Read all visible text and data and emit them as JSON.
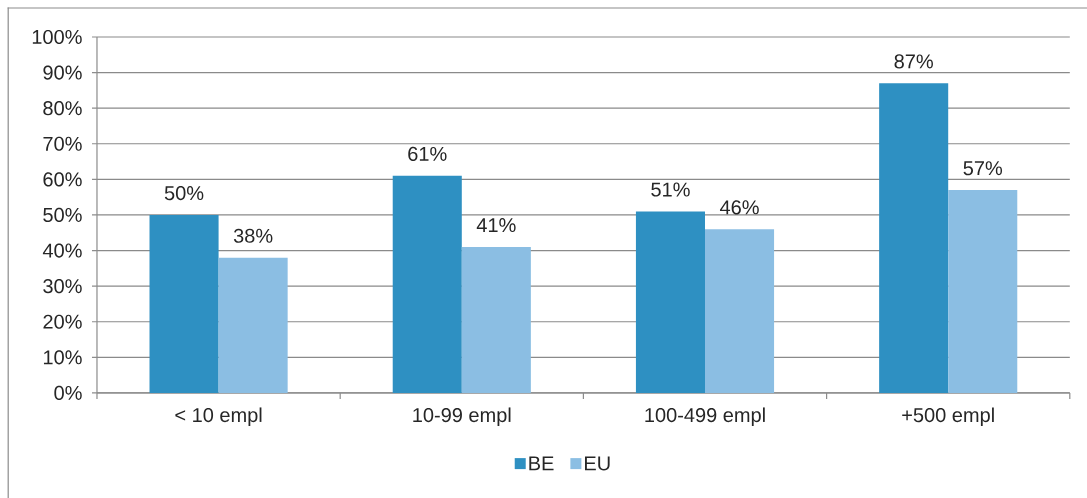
{
  "chart_data": {
    "type": "bar",
    "categories": [
      "< 10 empl",
      "10-99 empl",
      "100-499 empl",
      "+500 empl"
    ],
    "series": [
      {
        "name": "BE",
        "color": "#2e90c2",
        "values": [
          50,
          61,
          51,
          87
        ],
        "value_labels": [
          "50%",
          "61%",
          "51%",
          "87%"
        ]
      },
      {
        "name": "EU",
        "color": "#8bbee3",
        "values": [
          38,
          41,
          46,
          57
        ],
        "value_labels": [
          "38%",
          "41%",
          "46%",
          "57%"
        ]
      }
    ],
    "ylim": [
      0,
      100
    ],
    "yticks": [
      {
        "value": 0,
        "label": "0%"
      },
      {
        "value": 10,
        "label": "10%"
      },
      {
        "value": 20,
        "label": "20%"
      },
      {
        "value": 30,
        "label": "30%"
      },
      {
        "value": 40,
        "label": "40%"
      },
      {
        "value": 50,
        "label": "50%"
      },
      {
        "value": 60,
        "label": "60%"
      },
      {
        "value": 70,
        "label": "70%"
      },
      {
        "value": 80,
        "label": "80%"
      },
      {
        "value": 90,
        "label": "90%"
      },
      {
        "value": 100,
        "label": "100%"
      }
    ],
    "grid": "y",
    "legend": "bottom"
  }
}
